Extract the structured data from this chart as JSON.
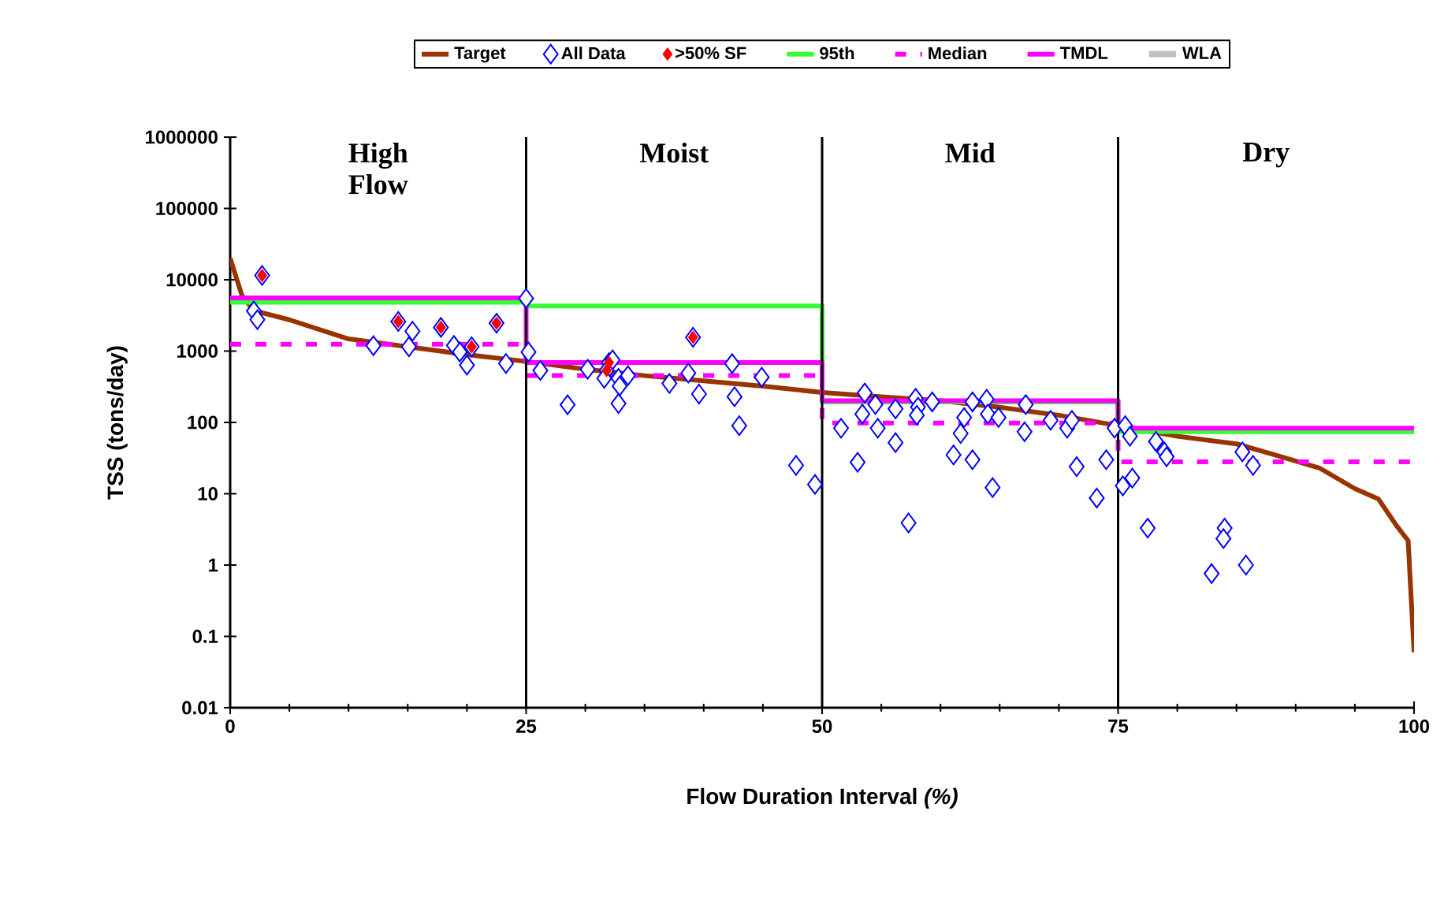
{
  "chart_data": {
    "type": "line",
    "xlabel": "Flow Duration Interval *(%)*",
    "ylabel": "TSS (tons/day)",
    "xlim": [
      0,
      100
    ],
    "xticks": [
      0,
      25,
      50,
      75,
      100
    ],
    "ylim": [
      0.01,
      1000000
    ],
    "log": "y",
    "yticks": [
      {
        "value": 0.01,
        "label": "0.01"
      },
      {
        "value": 0.1,
        "label": "0.1"
      },
      {
        "value": 1,
        "label": "1"
      },
      {
        "value": 10,
        "label": "10"
      },
      {
        "value": 100,
        "label": "100"
      },
      {
        "value": 1000,
        "label": "1000"
      },
      {
        "value": 10000,
        "label": "10000"
      },
      {
        "value": 100000,
        "label": "100000"
      },
      {
        "value": 1000000,
        "label": "1000000"
      }
    ],
    "legend": "top",
    "ref_lines": [
      {
        "axis": "x",
        "value": 25,
        "color": "#000000"
      },
      {
        "axis": "x",
        "value": 50,
        "color": "#000000"
      },
      {
        "axis": "x",
        "value": 75,
        "color": "#000000"
      }
    ],
    "annotations": [
      "**High Flow**",
      "**Moist**",
      "**Mid**",
      "**Dry**"
    ],
    "series": [
      {
        "name": "Target",
        "color": "#993300",
        "marker": "none",
        "line_style": "solid",
        "x": [
          0,
          1,
          2,
          5,
          10,
          15,
          20,
          25,
          30,
          35,
          40,
          45,
          50,
          55,
          60,
          65,
          70,
          75,
          80,
          85,
          88,
          92,
          95,
          97,
          98.5,
          99.5,
          100
        ],
        "values": [
          20000,
          6000,
          3700,
          2750,
          1480,
          1150,
          890,
          716,
          556,
          453,
          382,
          322,
          263,
          229,
          201,
          163,
          126,
          90,
          64,
          50,
          36,
          23,
          11.8,
          8.4,
          3.6,
          2.2,
          0.06
        ]
      },
      {
        "name": "All Data",
        "type": "scatter",
        "color": "#0000ff",
        "marker": "diamond",
        "x": [
          2.7,
          2.0,
          2.3,
          14.2,
          15.4,
          15.1,
          12.1,
          17.8,
          18.9,
          19.4,
          20.4,
          20.0,
          22.5,
          23.3,
          25.0,
          25.2,
          26.2,
          28.5,
          30.2,
          32.0,
          31.8,
          31.6,
          32.8,
          32.9,
          32.8,
          33.6,
          32.3,
          37.1,
          38.7,
          39.1,
          39.6,
          42.4,
          42.6,
          43.0,
          44.9,
          47.8,
          49.4,
          53.6,
          54.5,
          53.4,
          51.6,
          54.7,
          56.2,
          53.0,
          57.3,
          57.9,
          58.1,
          58.0,
          59.3,
          56.2,
          62.7,
          63.9,
          64.0,
          64.9,
          62.0,
          61.7,
          61.1,
          62.7,
          64.4,
          67.2,
          67.1,
          69.3,
          70.7,
          71.1,
          71.5,
          74.0,
          73.2,
          74.7,
          75.6,
          76.0,
          75.4,
          76.2,
          78.2,
          78.9,
          79.1,
          77.5,
          85.5,
          86.4,
          84.0,
          83.9,
          82.9,
          85.8
        ],
        "values": [
          11500,
          3650,
          2760,
          2600,
          1900,
          1150,
          1190,
          2150,
          1200,
          970,
          1150,
          635,
          2460,
          670,
          5470,
          970,
          535,
          177,
          556,
          690,
          535,
          415,
          415,
          323,
          184,
          453,
          753,
          352,
          492,
          1560,
          250,
          668,
          229,
          90,
          430,
          25,
          13.5,
          259,
          178,
          131,
          83,
          83,
          52,
          27.6,
          3.9,
          218,
          164,
          126,
          194,
          155,
          194,
          211,
          131,
          117,
          117,
          70,
          35,
          30,
          12.2,
          178,
          74,
          107,
          83,
          107,
          24,
          30,
          8.7,
          83,
          90,
          64,
          12.9,
          16.6,
          54,
          38.6,
          33,
          3.3,
          38.6,
          25,
          3.3,
          2.35,
          0.76,
          1.0
        ]
      },
      {
        "name": ">50% SF",
        "type": "scatter",
        "color": "#ff0000",
        "marker": "diamond",
        "x": [
          2.7,
          14.2,
          17.8,
          20.4,
          22.5,
          32.0,
          31.8,
          39.1
        ],
        "values": [
          11500,
          2600,
          2150,
          1150,
          2460,
          690,
          535,
          1560
        ]
      },
      {
        "name": "95th",
        "type": "step",
        "color": "#33ff33",
        "marker": "none",
        "line_style": "solid",
        "x": [
          0,
          25,
          50,
          75,
          100
        ],
        "values": [
          4850,
          4300,
          194,
          74,
          74
        ]
      },
      {
        "name": "Median",
        "type": "step",
        "color": "#ff00ff",
        "marker": "none",
        "line_style": "dashed",
        "x": [
          0,
          25,
          50,
          75,
          100
        ],
        "values": [
          1250,
          453,
          98,
          28,
          28
        ]
      },
      {
        "name": "TMDL",
        "type": "step",
        "color": "#ff00ff",
        "marker": "none",
        "line_style": "solid",
        "x": [
          0,
          25,
          50,
          75,
          100
        ],
        "values": [
          5570,
          692,
          201,
          83,
          83
        ]
      },
      {
        "name": "WLA",
        "type": "line",
        "color": "#c0c0c0",
        "marker": "none",
        "line_style": "solid"
      }
    ]
  }
}
